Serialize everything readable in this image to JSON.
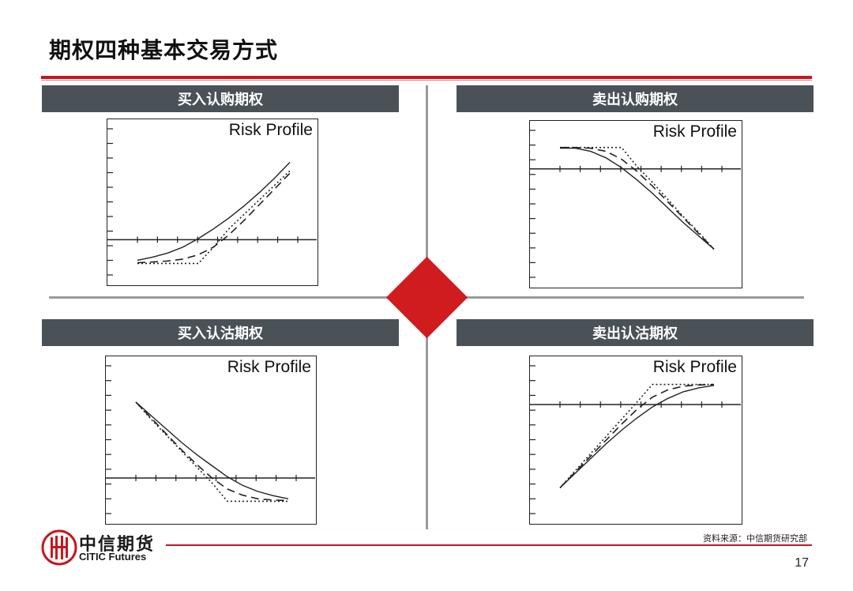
{
  "slide": {
    "title": "期权四种基本交易方式",
    "source": "资料来源：中信期货研究部",
    "page_number": "17"
  },
  "logo": {
    "name_cn": "中信期货",
    "name_en": "CITIC Futures",
    "icon": "citic-logo-icon",
    "color": "#c8161d"
  },
  "colors": {
    "accent": "#c8161d",
    "header_bar": "#4a5157",
    "divider": "#9a9a9a",
    "diamond": "#d01c1f"
  },
  "panels": [
    {
      "id": "long-call",
      "label": "买入认购期权",
      "chart_title": "Risk Profile"
    },
    {
      "id": "short-call",
      "label": "卖出认购期权",
      "chart_title": "Risk Profile"
    },
    {
      "id": "long-put",
      "label": "买入认沽期权",
      "chart_title": "Risk Profile"
    },
    {
      "id": "short-put",
      "label": "卖出认沽期权",
      "chart_title": "Risk Profile"
    }
  ],
  "chart_data": [
    {
      "type": "line",
      "title": "Risk Profile",
      "x": [
        0,
        0.1,
        0.2,
        0.3,
        0.4,
        0.5,
        0.6,
        0.7,
        0.8,
        0.9,
        1.0
      ],
      "ylim": [
        -1,
        4
      ],
      "zero_line": 0,
      "series": [
        {
          "style": "solid",
          "values": [
            -0.85,
            -0.72,
            -0.55,
            -0.3,
            0.05,
            0.45,
            0.9,
            1.4,
            1.95,
            2.55,
            3.2
          ]
        },
        {
          "style": "dashed",
          "values": [
            -0.95,
            -0.92,
            -0.88,
            -0.8,
            -0.62,
            -0.3,
            0.2,
            0.8,
            1.45,
            2.1,
            2.75
          ]
        },
        {
          "style": "dotted",
          "values": [
            -0.98,
            -0.98,
            -0.98,
            -0.98,
            -0.98,
            -0.3,
            0.45,
            1.05,
            1.65,
            2.25,
            2.85
          ]
        }
      ]
    },
    {
      "type": "line",
      "title": "Risk Profile",
      "x": [
        0,
        0.1,
        0.2,
        0.3,
        0.4,
        0.5,
        0.6,
        0.7,
        0.8,
        0.9,
        1.0
      ],
      "ylim": [
        -4,
        1
      ],
      "zero_line": 0,
      "series": [
        {
          "style": "solid",
          "values": [
            0.85,
            0.85,
            0.72,
            0.45,
            0.05,
            -0.45,
            -1.0,
            -1.6,
            -2.2,
            -2.75,
            -3.3
          ]
        },
        {
          "style": "dashed",
          "values": [
            0.88,
            0.88,
            0.85,
            0.72,
            0.4,
            -0.1,
            -0.7,
            -1.35,
            -2.0,
            -2.65,
            -3.3
          ]
        },
        {
          "style": "dotted",
          "values": [
            0.88,
            0.88,
            0.88,
            0.88,
            0.88,
            0.1,
            -0.55,
            -1.25,
            -1.95,
            -2.6,
            -3.3
          ]
        }
      ]
    },
    {
      "type": "line",
      "title": "Risk Profile",
      "x": [
        0,
        0.1,
        0.2,
        0.3,
        0.4,
        0.5,
        0.6,
        0.7,
        0.8,
        0.9,
        1.0
      ],
      "ylim": [
        -1,
        4
      ],
      "zero_line": 0,
      "series": [
        {
          "style": "solid",
          "values": [
            3.1,
            2.55,
            2.0,
            1.45,
            0.95,
            0.5,
            0.05,
            -0.3,
            -0.55,
            -0.72,
            -0.85
          ]
        },
        {
          "style": "dashed",
          "values": [
            3.1,
            2.45,
            1.8,
            1.15,
            0.55,
            0.0,
            -0.45,
            -0.7,
            -0.85,
            -0.9,
            -0.92
          ]
        },
        {
          "style": "dotted",
          "values": [
            3.1,
            2.4,
            1.75,
            1.1,
            0.45,
            -0.2,
            -0.95,
            -0.95,
            -0.95,
            -0.95,
            -0.95
          ]
        }
      ]
    },
    {
      "type": "line",
      "title": "Risk Profile",
      "x": [
        0,
        0.1,
        0.2,
        0.3,
        0.4,
        0.5,
        0.6,
        0.7,
        0.8,
        0.9,
        1.0
      ],
      "ylim": [
        -4,
        1
      ],
      "zero_line": 0,
      "series": [
        {
          "style": "solid",
          "values": [
            -3.4,
            -2.8,
            -2.2,
            -1.6,
            -1.05,
            -0.55,
            -0.1,
            0.25,
            0.52,
            0.68,
            0.78
          ]
        },
        {
          "style": "dashed",
          "values": [
            -3.4,
            -2.75,
            -2.1,
            -1.45,
            -0.8,
            -0.2,
            0.3,
            0.6,
            0.75,
            0.8,
            0.82
          ]
        },
        {
          "style": "dotted",
          "values": [
            -3.4,
            -2.7,
            -2.0,
            -1.3,
            -0.6,
            0.1,
            0.82,
            0.82,
            0.82,
            0.82,
            0.82
          ]
        }
      ]
    }
  ]
}
